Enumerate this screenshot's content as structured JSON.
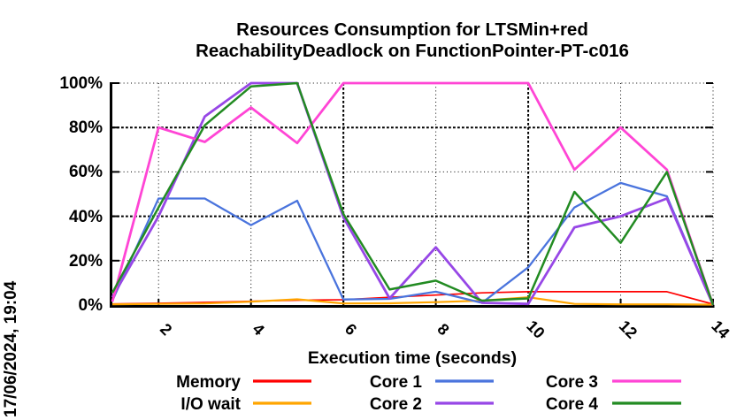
{
  "timestamp_label": "17/06/2024, 19:04",
  "chart_data": {
    "type": "line",
    "title": [
      "Resources Consumption for LTSMin+red",
      "ReachabilityDeadlock on FunctionPointer-PT-c016"
    ],
    "xlabel": "Execution time (seconds)",
    "ylabel": "",
    "xlim": [
      1,
      14
    ],
    "ylim": [
      0,
      100
    ],
    "grid": true,
    "legend_position": "bottom",
    "x": [
      1,
      2,
      3,
      4,
      5,
      6,
      7,
      8,
      9,
      10,
      11,
      12,
      13,
      14
    ],
    "x_ticks": [
      {
        "value": 2,
        "label": "2"
      },
      {
        "value": 4,
        "label": "4"
      },
      {
        "value": 6,
        "label": "6"
      },
      {
        "value": 8,
        "label": "8"
      },
      {
        "value": 10,
        "label": "10"
      },
      {
        "value": 12,
        "label": "12"
      },
      {
        "value": 14,
        "label": "14"
      }
    ],
    "y_ticks": [
      {
        "value": 0,
        "label": "0%"
      },
      {
        "value": 20,
        "label": "20%"
      },
      {
        "value": 40,
        "label": "40%"
      },
      {
        "value": 60,
        "label": "60%"
      },
      {
        "value": 80,
        "label": "80%"
      },
      {
        "value": 100,
        "label": "100%"
      }
    ],
    "bold_x_gridlines": [
      6,
      10
    ],
    "bold_y_gridlines": [
      40,
      80
    ],
    "series": [
      {
        "name": "Memory",
        "color": "#ff0000",
        "stroke_width": 1.7,
        "values": [
          0.5,
          0.8,
          1.2,
          1.7,
          2.2,
          2.4,
          3.5,
          4.5,
          5.5,
          6,
          6,
          6,
          6,
          0.4
        ]
      },
      {
        "name": "I/O wait",
        "color": "#ffa500",
        "stroke_width": 2.2,
        "values": [
          0.3,
          0.5,
          0.7,
          1.5,
          2.6,
          0.7,
          0.8,
          1.3,
          2,
          3.5,
          0.5,
          0.3,
          0.3,
          0.2
        ]
      },
      {
        "name": "Core 1",
        "color": "#4a74dd",
        "stroke_width": 2.3,
        "values": [
          2,
          48,
          48,
          36,
          47,
          2.5,
          2.8,
          6,
          1,
          17,
          44,
          55,
          49,
          0
        ]
      },
      {
        "name": "Core 2",
        "color": "#9747e6",
        "stroke_width": 2.8,
        "values": [
          3.5,
          40,
          85,
          100,
          100,
          39.5,
          3,
          26,
          1,
          0.5,
          35,
          40,
          48,
          0
        ]
      },
      {
        "name": "Core 3",
        "color": "#ff45d5",
        "stroke_width": 2.8,
        "values": [
          1.5,
          80,
          73.5,
          89,
          73,
          100,
          100,
          100,
          100,
          100,
          61,
          80,
          61,
          0
        ]
      },
      {
        "name": "Core 4",
        "color": "#228b22",
        "stroke_width": 2.5,
        "values": [
          5.5,
          44,
          81,
          98.5,
          100,
          41,
          7,
          11,
          2,
          3,
          51,
          28,
          60,
          0
        ]
      }
    ]
  }
}
